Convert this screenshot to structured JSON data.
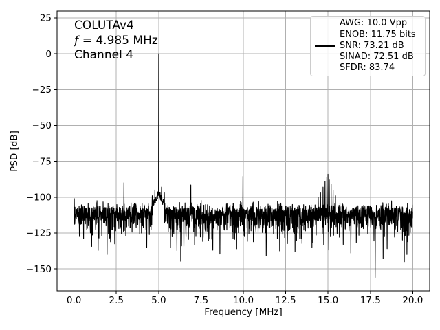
{
  "annotation": {
    "line1": "COLUTAv4",
    "f_symbol": "f",
    "f_value": " = 4.985 MHz",
    "line3": "Channel 4"
  },
  "legend": {
    "entries": [
      "AWG: 10.0 Vpp",
      "ENOB: 11.75 bits",
      "SNR: 73.21 dB",
      "SINAD: 72.51 dB",
      "SFDR: 83.74"
    ],
    "handle_row": 2,
    "border_color": "#cccccc"
  },
  "chart_data": {
    "type": "line",
    "title": "",
    "xlabel": "Frequency [MHz]",
    "ylabel": "PSD [dB]",
    "xlim": [
      -1,
      21
    ],
    "ylim": [
      -165.3,
      29.8
    ],
    "x_ticks": [
      0,
      2.5,
      5,
      7.5,
      10,
      12.5,
      15,
      17.5,
      20
    ],
    "x_tick_labels": [
      "0.0",
      "2.5",
      "5.0",
      "7.5",
      "10.0",
      "12.5",
      "15.0",
      "17.5",
      "20.0"
    ],
    "y_ticks": [
      25,
      0,
      -25,
      -50,
      -75,
      -100,
      -125,
      -150
    ],
    "y_tick_labels": [
      "25",
      "0",
      "−25",
      "−50",
      "−75",
      "−100",
      "−125",
      "−150"
    ],
    "grid": true,
    "grid_color": "#b0b0b0",
    "line_color": "#000000",
    "background_color": "#ffffff",
    "legend_position": "upper right",
    "fundamental": {
      "f": 5.0,
      "db": 0.0
    },
    "carrier_skirt": {
      "center": 5.0,
      "half_width_mhz": 0.35,
      "db_at_center": -97,
      "db_at_edge": -106
    },
    "noise": {
      "model": "exponential-psd",
      "floor_db": -111,
      "clip_db": -157,
      "points": 2048,
      "seed": 11
    },
    "spurs": [
      {
        "f": 0.015,
        "db": -101
      },
      {
        "f": 2.95,
        "db": -90
      },
      {
        "f": 4.62,
        "db": -99
      },
      {
        "f": 4.78,
        "db": -95
      },
      {
        "f": 5.17,
        "db": -93
      },
      {
        "f": 5.33,
        "db": -97
      },
      {
        "f": 6.9,
        "db": -91.5
      },
      {
        "f": 9.98,
        "db": -85.5
      },
      {
        "f": 14.42,
        "db": -100
      },
      {
        "f": 14.56,
        "db": -97
      },
      {
        "f": 14.7,
        "db": -93
      },
      {
        "f": 14.82,
        "db": -89
      },
      {
        "f": 14.93,
        "db": -86
      },
      {
        "f": 15.0,
        "db": -84
      },
      {
        "f": 15.08,
        "db": -88
      },
      {
        "f": 15.18,
        "db": -91
      },
      {
        "f": 15.3,
        "db": -95
      },
      {
        "f": 15.44,
        "db": -99
      }
    ],
    "dips": [
      {
        "f": 1.95,
        "db": -140
      },
      {
        "f": 4.3,
        "db": -135
      },
      {
        "f": 6.35,
        "db": -134
      },
      {
        "f": 8.2,
        "db": -137
      },
      {
        "f": 9.6,
        "db": -136
      },
      {
        "f": 11.35,
        "db": -141
      },
      {
        "f": 13.05,
        "db": -138
      },
      {
        "f": 14.05,
        "db": -135
      },
      {
        "f": 15.9,
        "db": -133
      },
      {
        "f": 16.35,
        "db": -139
      },
      {
        "f": 17.78,
        "db": -156
      },
      {
        "f": 18.25,
        "db": -143
      },
      {
        "f": 19.5,
        "db": -145
      }
    ]
  }
}
